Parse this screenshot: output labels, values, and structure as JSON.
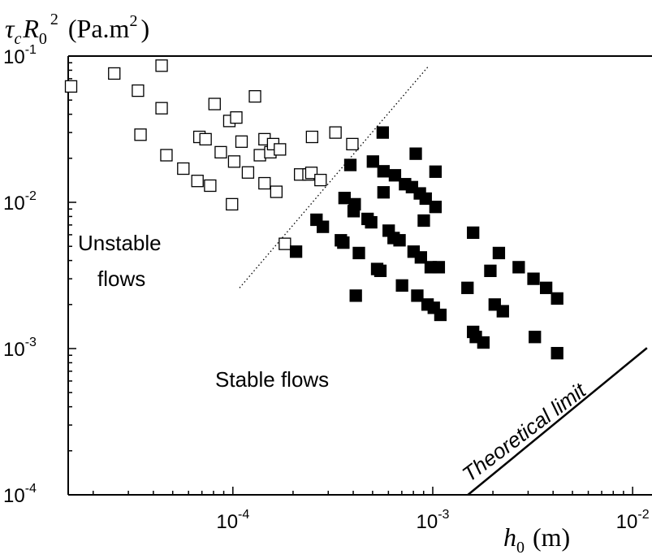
{
  "chart_data": {
    "type": "scatter",
    "xscale": "log",
    "yscale": "log",
    "xlim": [
      1.5e-05,
      0.0125
    ],
    "ylim": [
      0.0001,
      0.1
    ],
    "x_ticks": [
      {
        "value": 0.0001,
        "base": "10",
        "exp": "-4"
      },
      {
        "value": 0.001,
        "base": "10",
        "exp": "-3"
      },
      {
        "value": 0.01,
        "base": "10",
        "exp": "-2"
      }
    ],
    "y_ticks": [
      {
        "value": 0.0001,
        "base": "10",
        "exp": "-4"
      },
      {
        "value": 0.001,
        "base": "10",
        "exp": "-3"
      },
      {
        "value": 0.01,
        "base": "10",
        "exp": "-2"
      },
      {
        "value": 0.1,
        "base": "10",
        "exp": "-1"
      }
    ],
    "xlabel": {
      "symbol": "h",
      "sub": "0",
      "unit": "(m)"
    },
    "ylabel": {
      "tau": "τ",
      "tau_sub": "c",
      "R": "R",
      "R_sub": "0",
      "R_sup": "2",
      "unit": "(Pa.m",
      "unit_sup": "2",
      "unit_close": ")"
    },
    "annotations": {
      "unstable_line1": "Unstable",
      "unstable_line2": "flows",
      "stable": "Stable flows",
      "theoretical": "Theoretical limit"
    },
    "series": [
      {
        "marker": "open-square",
        "points": [
          [
            1.55e-05,
            0.062
          ],
          [
            2.55e-05,
            0.076
          ],
          [
            3.35e-05,
            0.058
          ],
          [
            3.45e-05,
            0.029
          ],
          [
            4.4e-05,
            0.086
          ],
          [
            4.4e-05,
            0.044
          ],
          [
            4.65e-05,
            0.021
          ],
          [
            5.65e-05,
            0.017
          ],
          [
            6.65e-05,
            0.014
          ],
          [
            6.8e-05,
            0.028
          ],
          [
            7.3e-05,
            0.027
          ],
          [
            7.7e-05,
            0.013
          ],
          [
            8.1e-05,
            0.047
          ],
          [
            8.7e-05,
            0.022
          ],
          [
            9.6e-05,
            0.036
          ],
          [
            9.9e-05,
            0.0097
          ],
          [
            0.0001015,
            0.019
          ],
          [
            0.000104,
            0.038
          ],
          [
            0.0001105,
            0.026
          ],
          [
            0.000119,
            0.016
          ],
          [
            0.000129,
            0.053
          ],
          [
            0.0001365,
            0.021
          ],
          [
            0.000144,
            0.027
          ],
          [
            0.000144,
            0.0135
          ],
          [
            0.000154,
            0.022
          ],
          [
            0.000159,
            0.025
          ],
          [
            0.000165,
            0.0118
          ],
          [
            0.000172,
            0.023
          ],
          [
            0.000182,
            0.0052
          ],
          [
            0.000217,
            0.0155
          ],
          [
            0.000239,
            0.0155
          ],
          [
            0.000247,
            0.0159
          ],
          [
            0.000249,
            0.028
          ],
          [
            0.0002745,
            0.0142
          ],
          [
            0.000326,
            0.03
          ],
          [
            0.000396,
            0.025
          ]
        ]
      },
      {
        "marker": "filled-square",
        "points": [
          [
            0.000207,
            0.0046
          ],
          [
            0.000262,
            0.0076
          ],
          [
            0.000282,
            0.0068
          ],
          [
            0.000347,
            0.0055
          ],
          [
            0.000357,
            0.0053
          ],
          [
            0.000362,
            0.0107
          ],
          [
            0.000387,
            0.018
          ],
          [
            0.000402,
            0.0087
          ],
          [
            0.000407,
            0.0097
          ],
          [
            0.000412,
            0.0023
          ],
          [
            0.000427,
            0.0045
          ],
          [
            0.000472,
            0.0077
          ],
          [
            0.000492,
            0.0073
          ],
          [
            0.000502,
            0.019
          ],
          [
            0.000527,
            0.0035
          ],
          [
            0.000547,
            0.0034
          ],
          [
            0.000562,
            0.03
          ],
          [
            0.000567,
            0.0163
          ],
          [
            0.000567,
            0.0117
          ],
          [
            0.000602,
            0.0064
          ],
          [
            0.000637,
            0.0057
          ],
          [
            0.000647,
            0.0153
          ],
          [
            0.000682,
            0.0055
          ],
          [
            0.000702,
            0.0027
          ],
          [
            0.000727,
            0.0133
          ],
          [
            0.000787,
            0.0127
          ],
          [
            0.000802,
            0.0046
          ],
          [
            0.000822,
            0.0215
          ],
          [
            0.000837,
            0.0023
          ],
          [
            0.000862,
            0.0115
          ],
          [
            0.000872,
            0.0042
          ],
          [
            0.000902,
            0.0075
          ],
          [
            0.000922,
            0.0106
          ],
          [
            0.000942,
            0.002
          ],
          [
            0.000977,
            0.0036
          ],
          [
            0.001012,
            0.0019
          ],
          [
            0.001032,
            0.0093
          ],
          [
            0.001032,
            0.0162
          ],
          [
            0.001072,
            0.0036
          ],
          [
            0.001092,
            0.0017
          ],
          [
            0.001492,
            0.0026
          ],
          [
            0.001592,
            0.0062
          ],
          [
            0.001592,
            0.0013
          ],
          [
            0.001642,
            0.0012
          ],
          [
            0.001792,
            0.0011
          ],
          [
            0.001942,
            0.0034
          ],
          [
            0.002042,
            0.002
          ],
          [
            0.002142,
            0.0045
          ],
          [
            0.002242,
            0.0018
          ],
          [
            0.002692,
            0.0036
          ],
          [
            0.003192,
            0.003
          ],
          [
            0.003242,
            0.0012
          ],
          [
            0.003692,
            0.0026
          ],
          [
            0.004192,
            0.0022
          ],
          [
            0.004192,
            0.00093
          ]
        ]
      }
    ],
    "lines": [
      {
        "style": "dotted",
        "from": [
          0.000108,
          0.0026
        ],
        "to": [
          0.00095,
          0.085
        ]
      },
      {
        "style": "solid",
        "from": [
          0.0015,
          0.0001
        ],
        "to": [
          0.0118,
          0.00101
        ]
      }
    ]
  }
}
